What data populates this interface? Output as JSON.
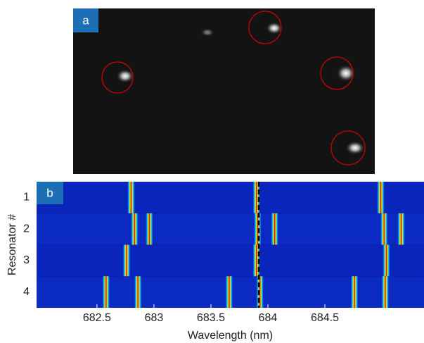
{
  "panel_a": {
    "label": "a"
  },
  "chart_data": {
    "type": "spectrogram",
    "label": "b",
    "xlabel": "Wavelength (nm)",
    "ylabel": "Resonator #",
    "categories": [
      "1",
      "2",
      "3",
      "4"
    ],
    "xlim": [
      681.97,
      685.37
    ],
    "xticks": [
      682.5,
      683,
      683.5,
      684,
      684.5
    ],
    "peaks": [
      [
        682.8,
        683.9,
        684.99
      ],
      [
        682.83,
        682.96,
        683.91,
        684.06,
        685.02,
        685.17
      ],
      [
        682.76,
        683.9,
        685.04
      ],
      [
        682.58,
        682.86,
        683.66,
        683.93,
        684.76,
        685.03
      ]
    ],
    "marker": 683.92
  }
}
